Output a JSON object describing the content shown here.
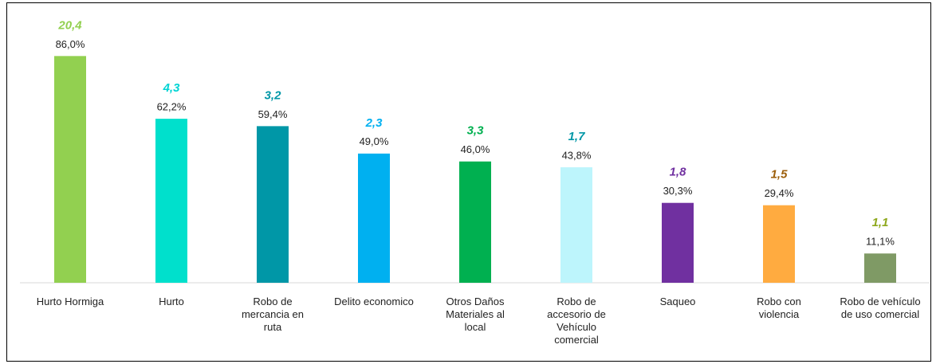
{
  "chart_data": {
    "type": "bar",
    "categories": [
      "Hurto Hormiga",
      "Hurto",
      "Robo de mercancia en ruta",
      "Delito economico",
      "Otros Daños Materiales al local",
      "Robo de accesorio de Vehículo comercial",
      "Saqueo",
      "Robo con violencia",
      "Robo de vehículo de uso comercial"
    ],
    "values": [
      86.0,
      62.2,
      59.4,
      49.0,
      46.0,
      43.8,
      30.3,
      29.4,
      11.1
    ],
    "value_labels": [
      "86,0%",
      "62,2%",
      "59,4%",
      "49,0%",
      "46,0%",
      "43,8%",
      "30,3%",
      "29,4%",
      "11,1%"
    ],
    "colors": [
      "#92d050",
      "#00e0cc",
      "#0097a7",
      "#00b0f0",
      "#00b050",
      "#bdf5fc",
      "#7030a0",
      "#ffab40",
      "#7f9a65"
    ],
    "secondary_values": [
      20.4,
      4.3,
      3.2,
      2.3,
      3.3,
      1.7,
      1.8,
      1.5,
      1.1
    ],
    "secondary_value_labels": [
      "20,4",
      "4,3",
      "3,2",
      "2,3",
      "3,3",
      "1,7",
      "1,8",
      "1,5",
      "1,1"
    ],
    "secondary_colors": [
      "#92d050",
      "#00d4d4",
      "#0097a7",
      "#00b0f0",
      "#00b050",
      "#0097a7",
      "#7030a0",
      "#9c5f0c",
      "#8ea81c"
    ],
    "ylim": [
      0,
      100
    ]
  }
}
